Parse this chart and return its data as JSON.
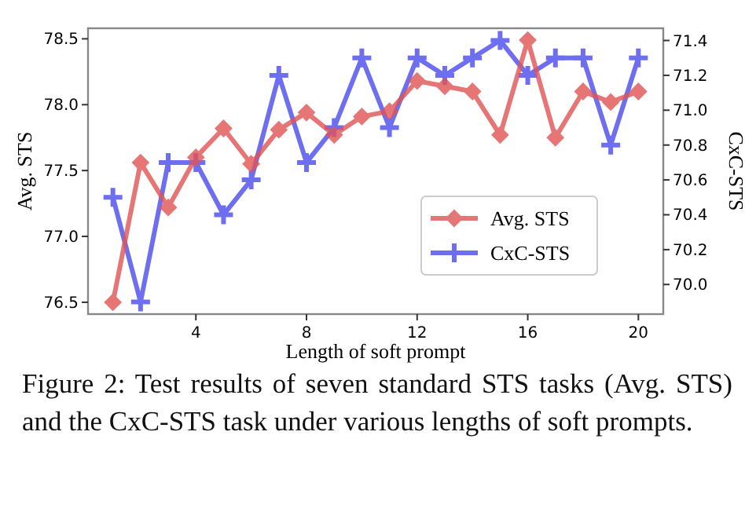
{
  "chart_data": {
    "type": "line",
    "xlabel": "Length of soft prompt",
    "ylabel": "Avg. STS",
    "y2label": "CxC-STS",
    "x": [
      1,
      2,
      3,
      4,
      5,
      6,
      7,
      8,
      9,
      10,
      11,
      12,
      13,
      14,
      15,
      16,
      17,
      18,
      19,
      20
    ],
    "xlim": [
      0.1,
      20.9
    ],
    "xticks": [
      4,
      8,
      12,
      16,
      20
    ],
    "ylim": [
      76.41,
      78.58
    ],
    "yticks": [
      {
        "value": 76.5,
        "label": "76.5"
      },
      {
        "value": 77,
        "label": "77.0"
      },
      {
        "value": 77.5,
        "label": "77.5"
      },
      {
        "value": 78,
        "label": "78.0"
      },
      {
        "value": 78.5,
        "label": "78.5"
      }
    ],
    "y2lim": [
      69.83,
      71.47
    ],
    "y2ticks": [
      {
        "value": 70,
        "label": "70.0"
      },
      {
        "value": 70.2,
        "label": "70.2"
      },
      {
        "value": 70.4,
        "label": "70.4"
      },
      {
        "value": 70.6,
        "label": "70.6"
      },
      {
        "value": 70.8,
        "label": "70.8"
      },
      {
        "value": 71,
        "label": "71.0"
      },
      {
        "value": 71.2,
        "label": "71.2"
      },
      {
        "value": 71.4,
        "label": "71.4"
      }
    ],
    "series": [
      {
        "name": "Avg. STS",
        "color": "#e05555",
        "marker": "diamond",
        "values": [
          76.5,
          77.56,
          77.22,
          77.6,
          77.82,
          77.55,
          77.81,
          77.94,
          77.77,
          77.91,
          77.95,
          78.18,
          78.14,
          78.1,
          77.77,
          78.49,
          77.75,
          78.1,
          78.02,
          78.1
        ]
      },
      {
        "name": "CxC-STS",
        "color": "#4a4aee",
        "marker": "cross",
        "axis": "y2",
        "values": [
          70.5,
          69.9,
          70.7,
          70.7,
          70.4,
          70.6,
          71.2,
          70.7,
          70.9,
          71.3,
          70.9,
          71.3,
          71.2,
          71.3,
          71.4,
          71.2,
          71.3,
          71.3,
          70.8,
          71.3
        ]
      }
    ],
    "legend": "right",
    "grid": false,
    "annotations": [
      "Figure 2: Test results of seven standard STS tasks (Avg. STS) and the CxC-STS task under various lengths of soft prompts."
    ]
  }
}
